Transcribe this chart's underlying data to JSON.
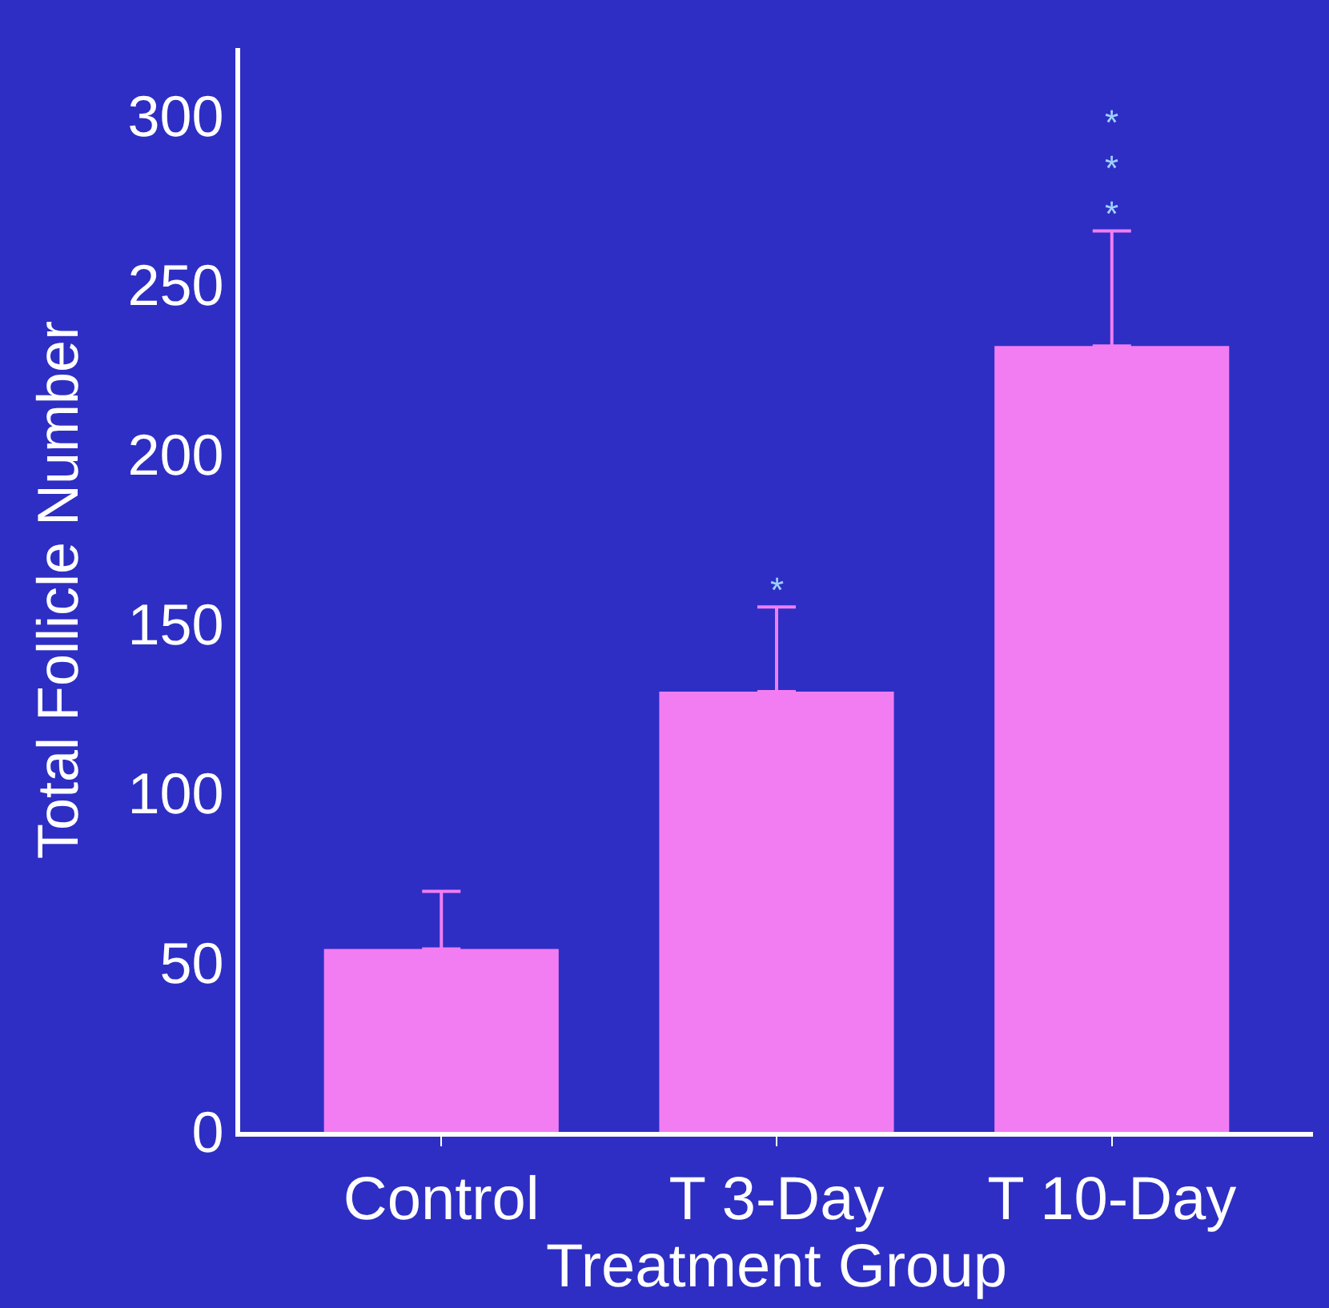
{
  "chart_data": {
    "type": "bar",
    "xlabel": "Treatment Group",
    "ylabel": "Total Follicle Number",
    "categories": [
      "Control",
      "T 3-Day",
      "T 10-Day"
    ],
    "values": [
      54,
      130,
      232
    ],
    "errors": [
      [
        54,
        71
      ],
      [
        130,
        155
      ],
      [
        232,
        266
      ]
    ],
    "color": "#f27df2",
    "ylim": [
      0,
      320
    ],
    "yticks": [
      0,
      50,
      100,
      150,
      200,
      250,
      300
    ],
    "grid": false,
    "legend": false,
    "annotations": [
      {
        "text": "*",
        "x": "T 3-Day",
        "y": 155
      },
      {
        "text": "***",
        "x": "T 10-Day",
        "y": 266
      }
    ]
  }
}
